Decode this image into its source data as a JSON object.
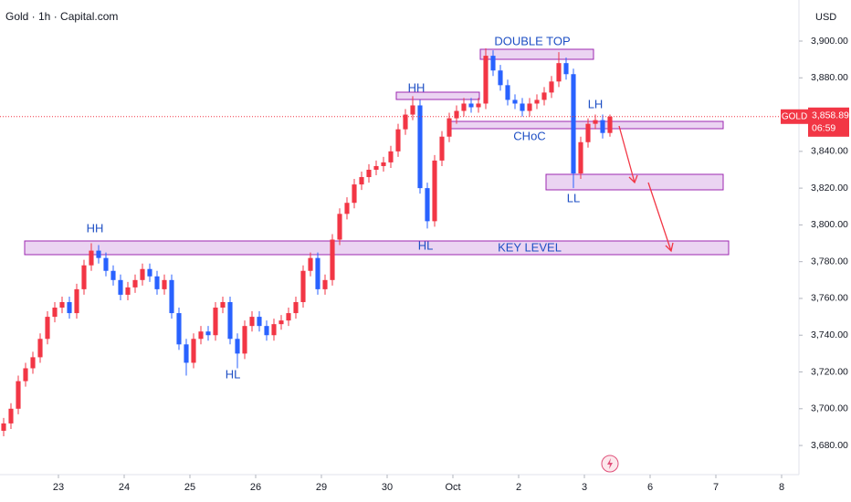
{
  "chart_data": {
    "type": "candlestick",
    "title": "Gold · 1h · Capital.com",
    "currency": "USD",
    "up_color": "#f23645",
    "down_color": "#2962ff",
    "open": [
      3688,
      3692,
      3700,
      3715,
      3722,
      3728,
      3738,
      3750,
      3755,
      3758,
      3752,
      3765,
      3778,
      3786,
      3782,
      3775,
      3770,
      3762,
      3766,
      3770,
      3776,
      3772,
      3765,
      3770,
      3752,
      3735,
      3725,
      3738,
      3742,
      3740,
      3755,
      3758,
      3738,
      3730,
      3745,
      3750,
      3745,
      3740,
      3746,
      3748,
      3752,
      3758,
      3775,
      3782,
      3765,
      3770,
      3792,
      3806,
      3812,
      3822,
      3826,
      3830,
      3832,
      3834,
      3840,
      3852,
      3860,
      3865,
      3820,
      3802,
      3835,
      3848,
      3858,
      3862,
      3866,
      3864,
      3866,
      3892,
      3884,
      3876,
      3868,
      3866,
      3862,
      3866,
      3868,
      3872,
      3878,
      3888,
      3882,
      3828,
      3845,
      3855,
      3857,
      3850
    ],
    "high": [
      3695,
      3703,
      3718,
      3725,
      3731,
      3741,
      3753,
      3758,
      3761,
      3761,
      3768,
      3781,
      3790,
      3789,
      3785,
      3778,
      3773,
      3769,
      3773,
      3779,
      3779,
      3775,
      3773,
      3773,
      3755,
      3738,
      3741,
      3745,
      3745,
      3758,
      3761,
      3761,
      3741,
      3748,
      3753,
      3753,
      3748,
      3749,
      3751,
      3755,
      3761,
      3778,
      3785,
      3785,
      3773,
      3795,
      3809,
      3815,
      3825,
      3829,
      3833,
      3835,
      3837,
      3843,
      3855,
      3863,
      3870,
      3868,
      3823,
      3838,
      3851,
      3861,
      3865,
      3869,
      3869,
      3869,
      3896,
      3895,
      3887,
      3879,
      3871,
      3869,
      3869,
      3871,
      3875,
      3881,
      3894,
      3891,
      3885,
      3848,
      3858,
      3860,
      3860,
      3860
    ],
    "low": [
      3685,
      3689,
      3697,
      3712,
      3719,
      3725,
      3735,
      3747,
      3752,
      3749,
      3749,
      3762,
      3775,
      3779,
      3772,
      3767,
      3759,
      3759,
      3763,
      3767,
      3769,
      3762,
      3762,
      3749,
      3732,
      3718,
      3722,
      3735,
      3737,
      3737,
      3752,
      3735,
      3722,
      3727,
      3742,
      3742,
      3737,
      3737,
      3743,
      3745,
      3749,
      3755,
      3772,
      3762,
      3762,
      3767,
      3789,
      3803,
      3809,
      3819,
      3823,
      3827,
      3829,
      3831,
      3837,
      3849,
      3857,
      3817,
      3798,
      3799,
      3832,
      3845,
      3855,
      3859,
      3861,
      3861,
      3863,
      3881,
      3873,
      3865,
      3863,
      3859,
      3859,
      3863,
      3865,
      3869,
      3875,
      3879,
      3820,
      3825,
      3842,
      3852,
      3847,
      3848
    ],
    "close": [
      3692,
      3700,
      3715,
      3722,
      3728,
      3738,
      3750,
      3755,
      3758,
      3752,
      3765,
      3778,
      3786,
      3782,
      3775,
      3770,
      3762,
      3766,
      3770,
      3776,
      3772,
      3765,
      3770,
      3752,
      3735,
      3725,
      3738,
      3742,
      3740,
      3755,
      3758,
      3738,
      3730,
      3745,
      3750,
      3745,
      3740,
      3746,
      3748,
      3752,
      3758,
      3775,
      3782,
      3765,
      3770,
      3792,
      3806,
      3812,
      3822,
      3826,
      3830,
      3832,
      3834,
      3840,
      3852,
      3860,
      3865,
      3820,
      3802,
      3835,
      3848,
      3858,
      3862,
      3866,
      3864,
      3866,
      3892,
      3884,
      3876,
      3868,
      3866,
      3862,
      3866,
      3868,
      3872,
      3878,
      3888,
      3882,
      3828,
      3845,
      3855,
      3857,
      3850,
      3858.89
    ],
    "xlim": [
      -0.5,
      108.25
    ],
    "xticks": [
      {
        "value": 7.5,
        "label": "23"
      },
      {
        "value": 16.5,
        "label": "24"
      },
      {
        "value": 25.5,
        "label": "25"
      },
      {
        "value": 34.5,
        "label": "26"
      },
      {
        "value": 43.5,
        "label": "29"
      },
      {
        "value": 52.5,
        "label": "30"
      },
      {
        "value": 61.5,
        "label": "Oct"
      },
      {
        "value": 70.5,
        "label": "2"
      },
      {
        "value": 79.5,
        "label": "3"
      },
      {
        "value": 88.5,
        "label": "6"
      },
      {
        "value": 97.5,
        "label": "7"
      },
      {
        "value": 106.5,
        "label": "8"
      }
    ],
    "ylim": [
      3664.15,
      3922.34
    ],
    "yticks": [
      {
        "value": 3680,
        "label": "3,680.00"
      },
      {
        "value": 3700,
        "label": "3,700.00"
      },
      {
        "value": 3720,
        "label": "3,720.00"
      },
      {
        "value": 3740,
        "label": "3,740.00"
      },
      {
        "value": 3760,
        "label": "3,760.00"
      },
      {
        "value": 3780,
        "label": "3,780.00"
      },
      {
        "value": 3800,
        "label": "3,800.00"
      },
      {
        "value": 3820,
        "label": "3,820.00"
      },
      {
        "value": 3840,
        "label": "3,840.00"
      },
      {
        "value": 3860,
        "label": "3,860.00"
      },
      {
        "value": 3880,
        "label": "3,880.00"
      },
      {
        "value": 3900,
        "label": "3,900.00"
      }
    ],
    "grid": false,
    "price_tag": {
      "symbol": "GOLD",
      "price": "3,858.89",
      "countdown": "06:59"
    },
    "annotations": {
      "hh_left": "HH",
      "hh_mid": "HH",
      "hl_left": "HL",
      "hl_mid": "HL",
      "double_top": "DOUBLE TOP",
      "choc": "CHoC",
      "lh": "LH",
      "ll": "LL",
      "key_level": "KEY LEVEL"
    }
  }
}
